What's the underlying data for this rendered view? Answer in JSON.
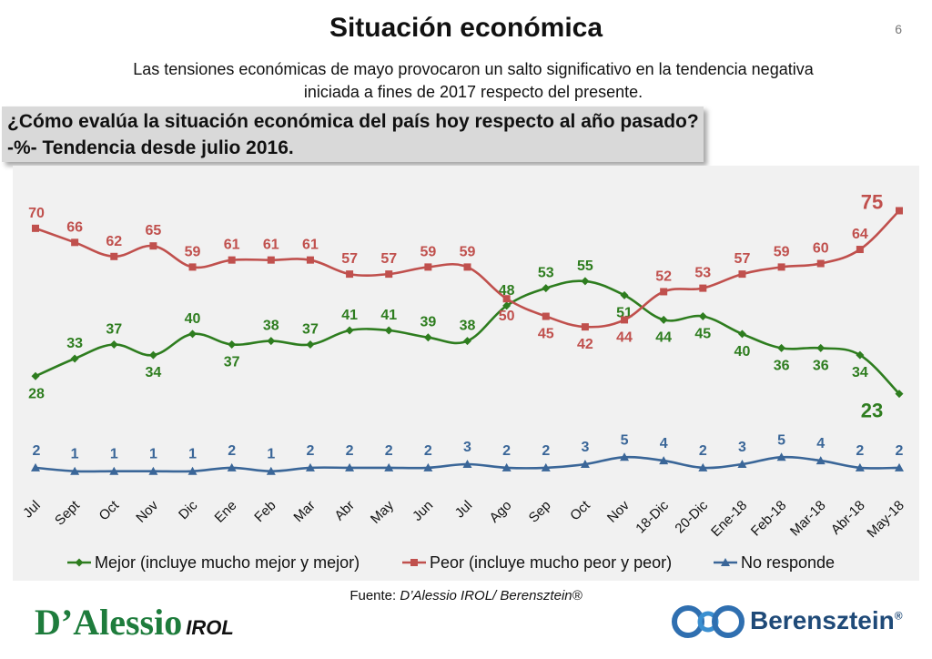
{
  "header": {
    "title": "Situación económica",
    "page_number": "6",
    "subtitle_line1": "Las tensiones económicas de mayo provocaron un salto significativo en la tendencia negativa",
    "subtitle_line2": "iniciada a fines de 2017 respecto del presente."
  },
  "question": {
    "line1": "¿Cómo evalúa la situación económica del país hoy respecto al año pasado?",
    "line2": "-%- Tendencia desde julio 2016."
  },
  "source": {
    "prefix": "Fuente: ",
    "text": "D’Alessio IROL/ Berensztein®"
  },
  "logos": {
    "left_main": "D’Alessio",
    "left_sub": "IROL",
    "right_name": "Berensztein",
    "right_mark": "®"
  },
  "colors": {
    "mejor": "#2e7d1f",
    "peor": "#c0504d",
    "no_responde": "#3a6698",
    "plot_bg": "#f1f1f1"
  },
  "chart_data": {
    "type": "line",
    "title": "",
    "xlabel": "",
    "ylabel": "",
    "ylim": [
      0,
      80
    ],
    "grid": false,
    "legend_position": "bottom",
    "categories": [
      "Jul",
      "Sept",
      "Oct",
      "Nov",
      "Dic",
      "Ene",
      "Feb",
      "Mar",
      "Abr",
      "May",
      "Jun",
      "Jul",
      "Ago",
      "Sep",
      "Oct",
      "Nov",
      "18-Dic",
      "20-Dic",
      "Ene-18",
      "Feb-18",
      "Mar-18",
      "Abr-18",
      "May-18"
    ],
    "series": [
      {
        "name": "Mejor (incluye mucho mejor y mejor)",
        "marker": "diamond",
        "values": [
          28,
          33,
          37,
          34,
          40,
          37,
          38,
          37,
          41,
          41,
          39,
          38,
          48,
          53,
          55,
          51,
          44,
          45,
          40,
          36,
          36,
          34,
          23
        ]
      },
      {
        "name": "Peor (incluye mucho peor y peor)",
        "marker": "square",
        "values": [
          70,
          66,
          62,
          65,
          59,
          61,
          61,
          61,
          57,
          57,
          59,
          59,
          50,
          45,
          42,
          44,
          52,
          53,
          57,
          59,
          60,
          64,
          75
        ]
      },
      {
        "name": "No responde",
        "marker": "triangle",
        "values": [
          2,
          1,
          1,
          1,
          1,
          2,
          1,
          2,
          2,
          2,
          2,
          3,
          2,
          2,
          3,
          5,
          4,
          2,
          3,
          5,
          4,
          2,
          2
        ]
      }
    ]
  }
}
